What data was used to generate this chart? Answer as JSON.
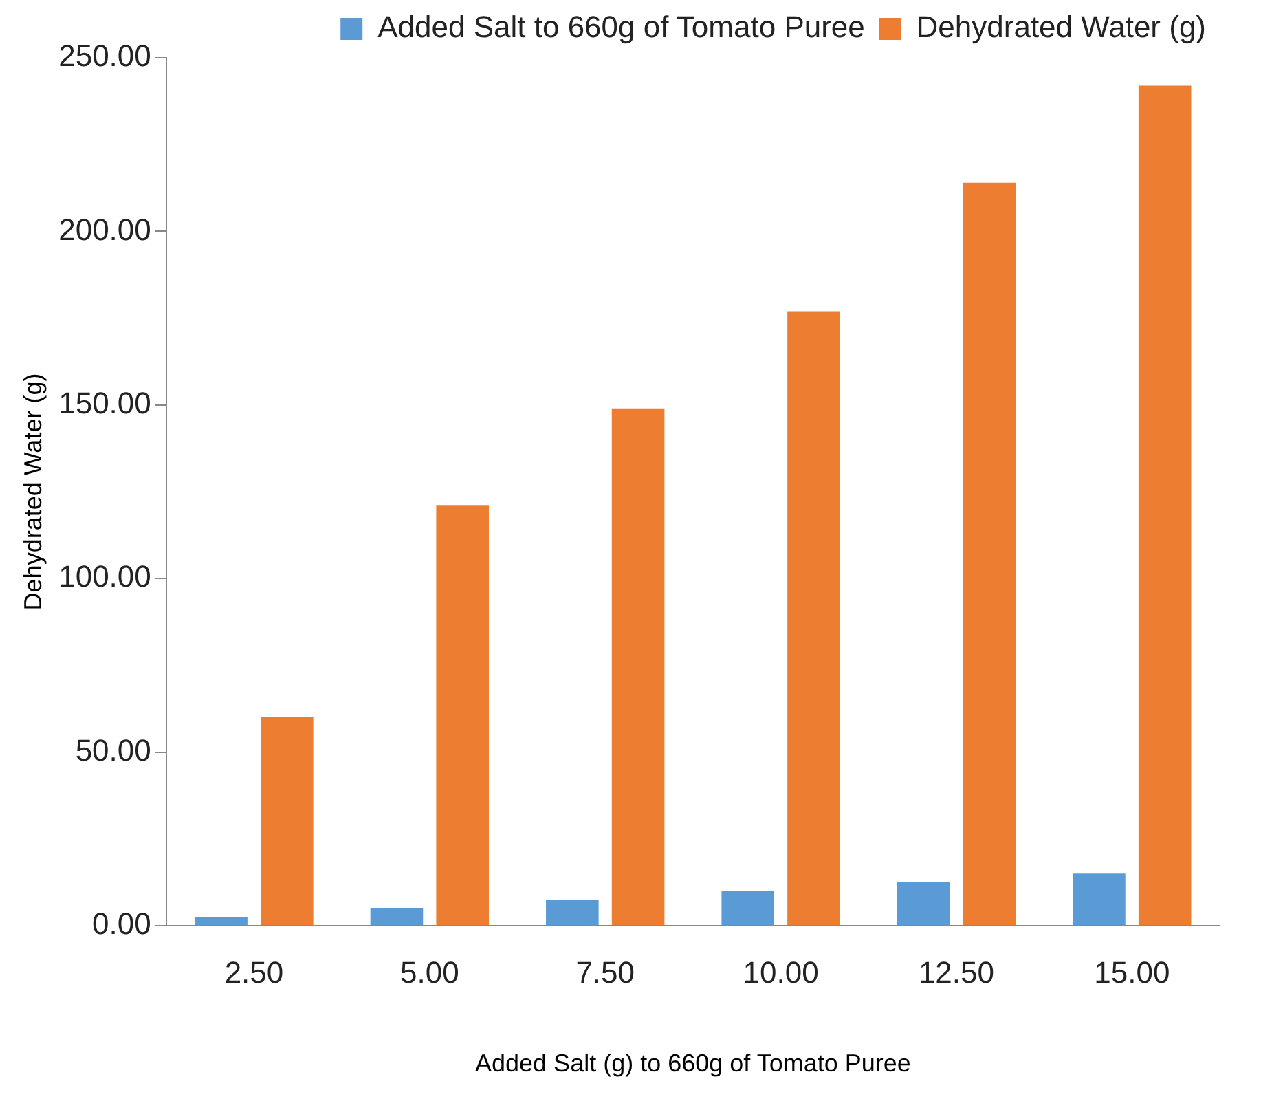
{
  "chart_data": {
    "type": "bar",
    "xlabel": "Added Salt (g) to 660g of Tomato Puree",
    "ylabel": "Dehydrated Water (g)",
    "categories": [
      "2.50",
      "5.00",
      "7.50",
      "10.00",
      "12.50",
      "15.00"
    ],
    "series": [
      {
        "name": "Added Salt to 660g of Tomato Puree",
        "color": "#5b9bd5",
        "values": [
          2.5,
          5,
          7.5,
          10,
          12.5,
          15
        ]
      },
      {
        "name": "Dehydrated Water (g)",
        "color": "#ed7d31",
        "values": [
          60,
          121,
          149,
          177,
          214,
          242
        ]
      }
    ],
    "ylim": [
      0,
      250
    ],
    "yticks": [
      {
        "value": 0,
        "label": "0.00"
      },
      {
        "value": 50,
        "label": "50.00"
      },
      {
        "value": 100,
        "label": "100.00"
      },
      {
        "value": 150,
        "label": "150.00"
      },
      {
        "value": 200,
        "label": "200.00"
      },
      {
        "value": 250,
        "label": "250.00"
      }
    ],
    "grid": false,
    "legend": "top right"
  }
}
